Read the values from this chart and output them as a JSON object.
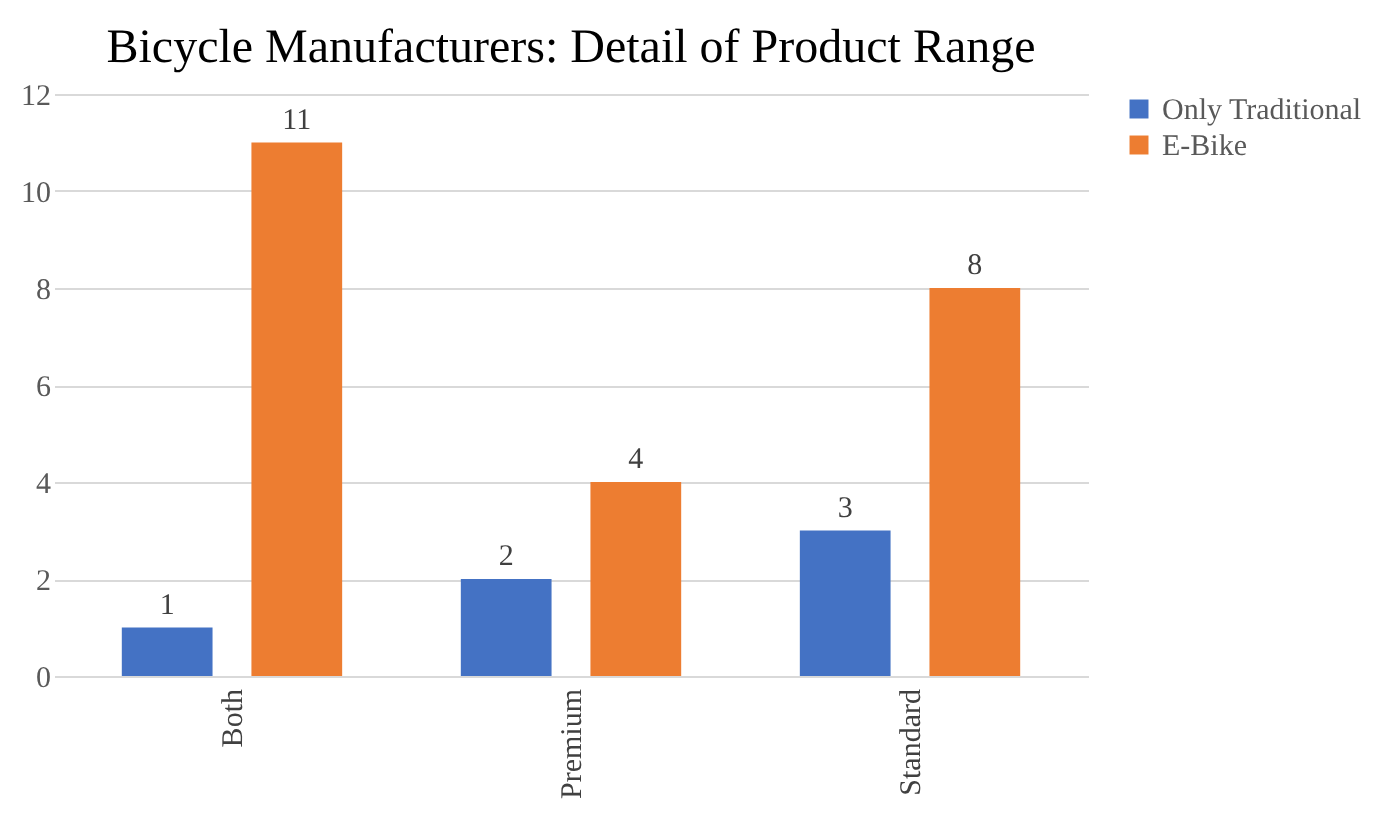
{
  "chart_data": {
    "type": "bar",
    "title": "Bicycle Manufacturers: Detail of Product Range",
    "categories": [
      "Both",
      "Premium",
      "Standard"
    ],
    "series": [
      {
        "name": "Only Traditional",
        "color": "#4472c4",
        "values": [
          1,
          2,
          3
        ]
      },
      {
        "name": "E-Bike",
        "color": "#ed7d31",
        "values": [
          11,
          4,
          8
        ]
      }
    ],
    "ylim": [
      0,
      12
    ],
    "yticks": [
      0,
      2,
      4,
      6,
      8,
      10,
      12
    ],
    "grid": "y",
    "legend": "right",
    "data_labels": true
  }
}
